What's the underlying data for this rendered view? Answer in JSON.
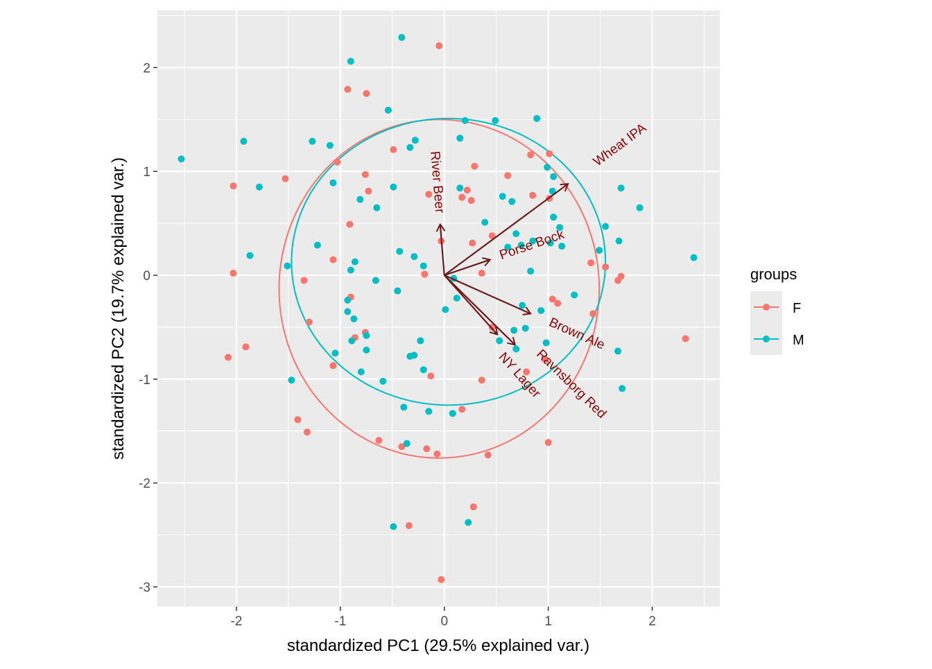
{
  "chart_data": {
    "type": "scatter",
    "xlabel": "standardized PC1 (29.5% explained var.)",
    "ylabel": "standardized PC2 (19.7% explained var.)",
    "xlim": [
      -2.76,
      2.65
    ],
    "ylim": [
      -3.19,
      2.55
    ],
    "x_ticks": [
      -2,
      -1,
      0,
      1,
      2
    ],
    "y_ticks": [
      2,
      1,
      0,
      -1,
      -2,
      -3
    ],
    "x_tick_labels": [
      "-2",
      "-1",
      "0",
      "1",
      "2"
    ],
    "y_tick_labels": [
      "2",
      "1",
      "0",
      "-1",
      "-2",
      "-3"
    ],
    "grid": true,
    "legend": {
      "title": "groups",
      "placement": "right"
    },
    "series": [
      {
        "name": "F",
        "color": "#F8766D",
        "ellipse": {
          "cx": -0.05,
          "cy": -0.13,
          "rx": 1.54,
          "ry": 1.63
        },
        "points": [
          [
            -0.05,
            2.21
          ],
          [
            -0.93,
            1.79
          ],
          [
            -0.75,
            1.75
          ],
          [
            -0.49,
            1.21
          ],
          [
            1.01,
            1.17
          ],
          [
            0.83,
            1.16
          ],
          [
            -1.03,
            1.09
          ],
          [
            0.29,
            1.05
          ],
          [
            -0.76,
            0.97
          ],
          [
            0.61,
            0.96
          ],
          [
            -2.03,
            0.86
          ],
          [
            -1.53,
            0.93
          ],
          [
            -0.73,
            0.81
          ],
          [
            -0.15,
            0.78
          ],
          [
            0.22,
            0.82
          ],
          [
            0.17,
            0.75
          ],
          [
            0.26,
            0.72
          ],
          [
            0.85,
            0.77
          ],
          [
            1.01,
            0.74
          ],
          [
            -0.91,
            0.49
          ],
          [
            0.46,
            0.38
          ],
          [
            -0.03,
            0.33
          ],
          [
            0.27,
            0.31
          ],
          [
            -1.07,
            0.15
          ],
          [
            1.41,
            0.12
          ],
          [
            1.55,
            0.08
          ],
          [
            -2.03,
            0.02
          ],
          [
            -0.19,
            0.01
          ],
          [
            0.36,
            0.02
          ],
          [
            1.7,
            -0.01
          ],
          [
            1.67,
            -0.05
          ],
          [
            -1.35,
            -0.05
          ],
          [
            -0.9,
            -0.21
          ],
          [
            1.04,
            -0.23
          ],
          [
            1.09,
            -0.27
          ],
          [
            1.43,
            -0.37
          ],
          [
            -1.3,
            -0.45
          ],
          [
            0.46,
            -0.5
          ],
          [
            -0.76,
            -0.55
          ],
          [
            -0.86,
            -0.6
          ],
          [
            2.32,
            -0.61
          ],
          [
            -1.91,
            -0.69
          ],
          [
            -2.08,
            -0.79
          ],
          [
            -1.07,
            -0.87
          ],
          [
            0.97,
            -0.81
          ],
          [
            0.79,
            -0.93
          ],
          [
            -0.13,
            -0.97
          ],
          [
            0.36,
            -1.01
          ],
          [
            0.17,
            -1.29
          ],
          [
            -1.41,
            -1.39
          ],
          [
            -1.32,
            -1.51
          ],
          [
            -0.63,
            -1.59
          ],
          [
            -0.41,
            -1.65
          ],
          [
            -0.17,
            -1.67
          ],
          [
            -0.07,
            -1.72
          ],
          [
            0.42,
            -1.73
          ],
          [
            1.0,
            -1.61
          ],
          [
            0.28,
            -2.23
          ],
          [
            -0.34,
            -2.41
          ],
          [
            -0.03,
            -2.93
          ]
        ]
      },
      {
        "name": "M",
        "color": "#00BFC4",
        "ellipse": {
          "cx": 0.04,
          "cy": 0.13,
          "rx": 1.51,
          "ry": 1.38
        },
        "points": [
          [
            -0.41,
            2.29
          ],
          [
            -0.9,
            2.06
          ],
          [
            -0.54,
            1.59
          ],
          [
            0.2,
            1.49
          ],
          [
            0.49,
            1.49
          ],
          [
            0.89,
            1.51
          ],
          [
            -2.53,
            1.12
          ],
          [
            -1.93,
            1.29
          ],
          [
            -1.27,
            1.29
          ],
          [
            -1.1,
            1.25
          ],
          [
            -0.28,
            1.3
          ],
          [
            -0.33,
            1.23
          ],
          [
            0.15,
            1.32
          ],
          [
            -1.78,
            0.85
          ],
          [
            -1.07,
            0.89
          ],
          [
            -0.49,
            0.85
          ],
          [
            0.15,
            0.84
          ],
          [
            -0.81,
            0.73
          ],
          [
            -0.65,
            0.65
          ],
          [
            0.56,
            0.76
          ],
          [
            0.65,
            0.71
          ],
          [
            0.99,
            1.04
          ],
          [
            1.05,
            0.95
          ],
          [
            1.04,
            0.81
          ],
          [
            1.7,
            0.84
          ],
          [
            1.88,
            0.65
          ],
          [
            0.39,
            0.51
          ],
          [
            1.05,
            0.56
          ],
          [
            1.11,
            0.46
          ],
          [
            1.55,
            0.47
          ],
          [
            0.69,
            0.4
          ],
          [
            0.61,
            0.27
          ],
          [
            0.74,
            0.29
          ],
          [
            0.85,
            0.33
          ],
          [
            1.13,
            0.28
          ],
          [
            1.02,
            0.31
          ],
          [
            1.49,
            0.24
          ],
          [
            1.68,
            0.33
          ],
          [
            2.4,
            0.17
          ],
          [
            -1.87,
            0.19
          ],
          [
            -1.22,
            0.29
          ],
          [
            -1.51,
            0.09
          ],
          [
            -0.86,
            0.13
          ],
          [
            -0.9,
            0.05
          ],
          [
            -0.43,
            0.23
          ],
          [
            -0.29,
            0.18
          ],
          [
            -0.2,
            0.09
          ],
          [
            0.83,
            0.04
          ],
          [
            0.09,
            -0.03
          ],
          [
            -0.66,
            -0.05
          ],
          [
            -0.45,
            -0.15
          ],
          [
            -0.93,
            -0.24
          ],
          [
            0.12,
            -0.22
          ],
          [
            0.01,
            -0.33
          ],
          [
            1.25,
            -0.19
          ],
          [
            0.75,
            -0.29
          ],
          [
            0.93,
            -0.34
          ],
          [
            -0.93,
            -0.35
          ],
          [
            -0.87,
            -0.42
          ],
          [
            0.78,
            -0.51
          ],
          [
            0.67,
            -0.53
          ],
          [
            -0.75,
            -0.58
          ],
          [
            -0.89,
            -0.63
          ],
          [
            0.53,
            -0.63
          ],
          [
            0.69,
            -0.71
          ],
          [
            0.98,
            -0.65
          ],
          [
            -0.23,
            -0.63
          ],
          [
            -1.05,
            -0.75
          ],
          [
            -0.75,
            -0.72
          ],
          [
            -0.33,
            -0.78
          ],
          [
            -0.29,
            -0.77
          ],
          [
            -0.2,
            -0.91
          ],
          [
            1.67,
            -0.73
          ],
          [
            1.71,
            -1.09
          ],
          [
            -1.47,
            -1.01
          ],
          [
            -0.8,
            -0.93
          ],
          [
            -0.59,
            -1.02
          ],
          [
            -0.39,
            -1.27
          ],
          [
            -0.15,
            -1.31
          ],
          [
            0.08,
            -1.33
          ],
          [
            -0.36,
            -1.62
          ],
          [
            0.23,
            -2.38
          ],
          [
            -0.49,
            -2.42
          ]
        ]
      }
    ],
    "arrows": [
      {
        "label": "River Beer",
        "x": -0.04,
        "y": 0.49
      },
      {
        "label": "Wheat IPA",
        "x": 1.19,
        "y": 0.88
      },
      {
        "label": "Porse Bock",
        "x": 0.44,
        "y": 0.15
      },
      {
        "label": "Brown Ale",
        "x": 0.83,
        "y": -0.37
      },
      {
        "label": "NY Lager",
        "x": 0.51,
        "y": -0.57
      },
      {
        "label": "Ravnsborg Red",
        "x": 0.68,
        "y": -0.67
      }
    ],
    "arrow_color": "#6B1A1A",
    "arrow_label_color": "#8B0000"
  }
}
